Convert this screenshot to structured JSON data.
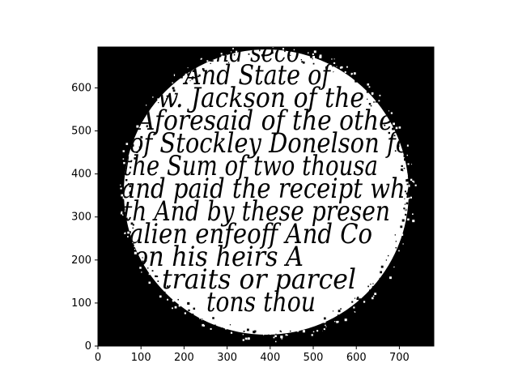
{
  "axes": {
    "x_ticks": [
      "0",
      "100",
      "200",
      "300",
      "400",
      "500",
      "600",
      "700"
    ],
    "y_ticks": [
      "0",
      "100",
      "200",
      "300",
      "400",
      "500",
      "600"
    ],
    "x_range": [
      0,
      780
    ],
    "y_range": [
      695,
      0
    ]
  },
  "image": {
    "kind": "binarized handwritten manuscript seen through a circular mask",
    "background_color": "#000000",
    "foreground_color": "#ffffff",
    "ink_color": "#000000",
    "handwriting_lines": [
      "and seco",
      "And State of",
      "w. Jackson of the",
      "Aforesaid of the other",
      "of Stockley Donelson for",
      "the Sum of two thousa",
      "and paid the receipt whi",
      "th And by these presen",
      "alien enfeoff And Co",
      "on his heirs A",
      "traits or parcel",
      "tons thou"
    ]
  }
}
